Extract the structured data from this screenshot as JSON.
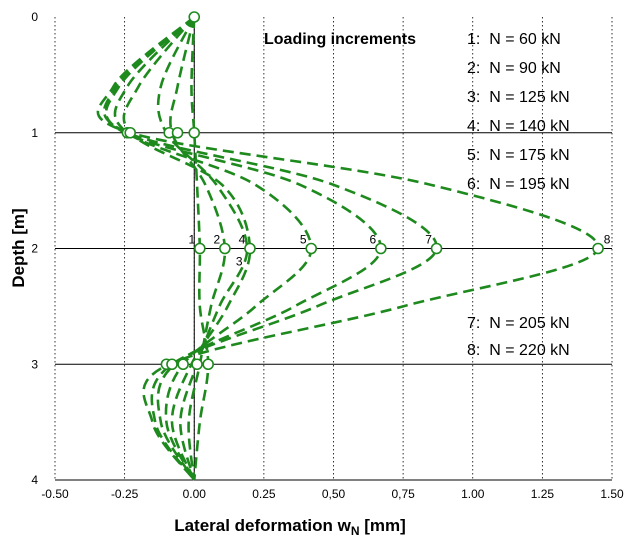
{
  "chart_data": {
    "type": "line",
    "orientation": "x-value vs depth (depth axis inverted, downward)",
    "xlabel": "Lateral deformation w",
    "xlabel_sub": "N",
    "xlabel_unit": " [mm]",
    "ylabel": "Depth [m]",
    "xlim": [
      -0.5,
      1.5
    ],
    "ylim": [
      0,
      4
    ],
    "x_ticks": [
      -0.5,
      -0.25,
      0,
      0.25,
      0.5,
      0.75,
      1.0,
      1.25,
      1.5
    ],
    "x_tick_labels": [
      "-0.50",
      "-0.25",
      "0.00",
      "0.25",
      "0,50",
      "0,75",
      "1.00",
      "1.25",
      "1.50"
    ],
    "y_ticks": [
      0,
      1,
      2,
      3,
      4
    ],
    "y_tick_labels": [
      "0",
      "1",
      "2",
      "3",
      "4"
    ],
    "grid": "dotted vertical lines at x ticks; solid horizontal lines at integer depths",
    "legend_title": "Loading increments",
    "legend_top": [
      "1:  N = 60 kN",
      "2:  N = 90 kN",
      "3:  N = 125 kN",
      "4:  N = 140 kN",
      "5:  N = 175 kN",
      "6:  N = 195 kN"
    ],
    "legend_bottom": [
      "7:  N = 205 kN",
      "8:  N = 220 kN"
    ],
    "series_color": "#1e8a1e",
    "marker_fill": "#ffffff",
    "depth": [
      0,
      0.6,
      1,
      1.45,
      2,
      2.5,
      3,
      3.5,
      4
    ],
    "series": [
      {
        "name": "1",
        "label": "1",
        "values": [
          0,
          -0.01,
          0.0,
          0.01,
          0.02,
          0.02,
          0.05,
          0.02,
          0
        ]
      },
      {
        "name": "2",
        "label": "2",
        "values": [
          0,
          -0.06,
          -0.08,
          0.04,
          0.11,
          0.06,
          0.02,
          -0.02,
          0
        ]
      },
      {
        "name": "3",
        "label": "3",
        "values": [
          0,
          -0.12,
          -0.1,
          0.08,
          0.19,
          0.09,
          0.01,
          -0.05,
          0
        ]
      },
      {
        "name": "4",
        "label": "4",
        "values": [
          0,
          -0.2,
          -0.23,
          0.1,
          0.2,
          0.12,
          -0.01,
          -0.08,
          0
        ]
      },
      {
        "name": "5",
        "label": "5",
        "values": [
          0,
          -0.24,
          -0.24,
          0.22,
          0.42,
          0.22,
          -0.04,
          -0.1,
          0
        ]
      },
      {
        "name": "6",
        "label": "6",
        "values": [
          0,
          -0.27,
          -0.25,
          0.38,
          0.67,
          0.36,
          -0.07,
          -0.12,
          0
        ]
      },
      {
        "name": "7",
        "label": "7",
        "values": [
          0,
          -0.28,
          -0.24,
          0.5,
          0.87,
          0.44,
          -0.08,
          -0.14,
          0
        ]
      },
      {
        "name": "8",
        "label": "8",
        "values": [
          0,
          -0.29,
          -0.23,
          0.85,
          1.45,
          0.75,
          -0.09,
          -0.15,
          0
        ]
      }
    ],
    "markers": [
      {
        "x": 0.0,
        "depth": 0
      },
      {
        "x": -0.24,
        "depth": 1
      },
      {
        "x": -0.23,
        "depth": 1
      },
      {
        "x": -0.09,
        "depth": 1
      },
      {
        "x": -0.06,
        "depth": 1
      },
      {
        "x": 0.0,
        "depth": 1
      },
      {
        "x": 0.02,
        "depth": 2
      },
      {
        "x": 0.11,
        "depth": 2
      },
      {
        "x": 0.2,
        "depth": 2
      },
      {
        "x": 0.42,
        "depth": 2
      },
      {
        "x": 0.67,
        "depth": 2
      },
      {
        "x": 0.87,
        "depth": 2
      },
      {
        "x": 1.45,
        "depth": 2
      },
      {
        "x": -0.1,
        "depth": 3
      },
      {
        "x": -0.08,
        "depth": 3
      },
      {
        "x": -0.04,
        "depth": 3
      },
      {
        "x": 0.01,
        "depth": 3
      },
      {
        "x": 0.05,
        "depth": 3
      }
    ]
  }
}
